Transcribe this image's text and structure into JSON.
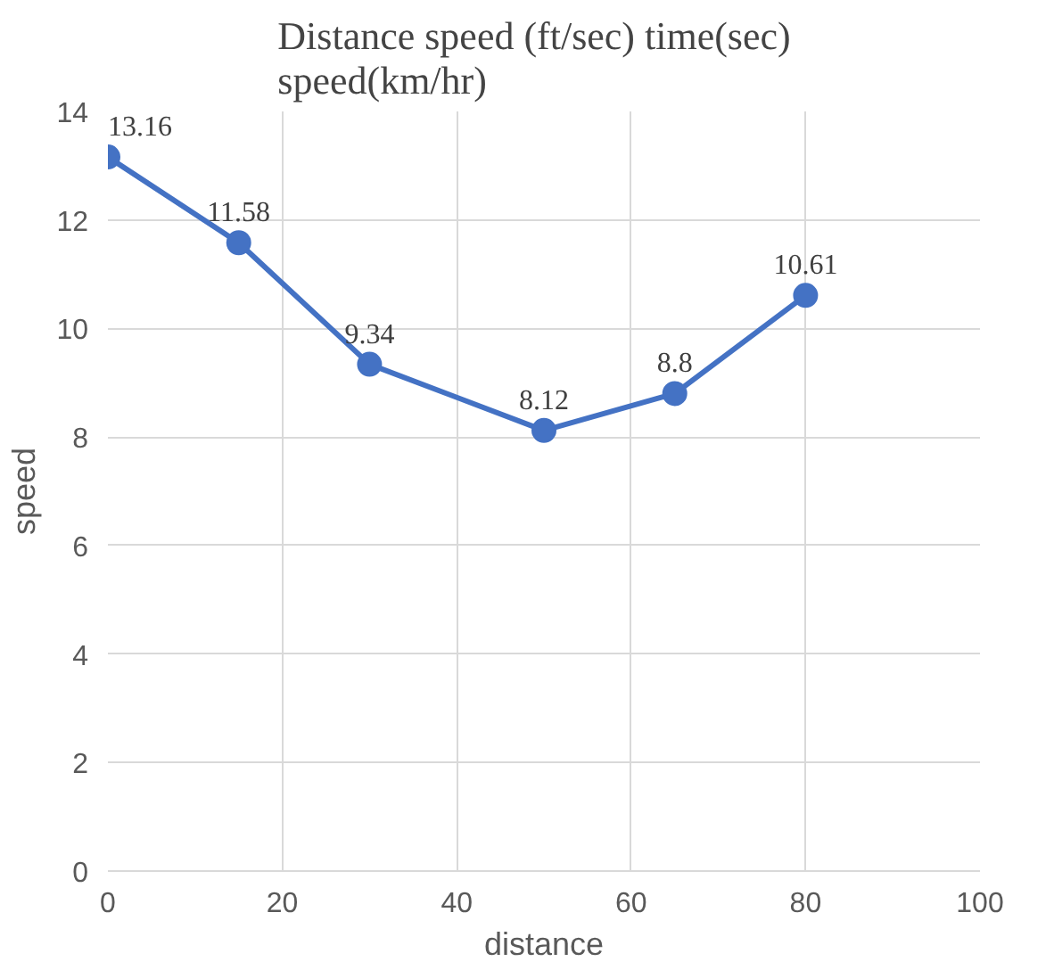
{
  "chart_data": {
    "type": "line",
    "title": "Distance  speed (ft/sec)  time(sec)\nspeed(km/hr)",
    "xlabel": "distance",
    "ylabel": "speed",
    "x": [
      0,
      15,
      30,
      50,
      65,
      80
    ],
    "series": [
      {
        "color": "#4472c4",
        "values": [
          13.16,
          11.58,
          9.34,
          8.12,
          8.8,
          10.61
        ]
      }
    ],
    "xlim": [
      0,
      100
    ],
    "xticks": [
      0,
      20,
      40,
      60,
      80,
      100
    ],
    "ylim": [
      0,
      14
    ],
    "yticks": [
      0,
      2,
      4,
      6,
      8,
      10,
      12,
      14
    ],
    "grid": true,
    "marker": "circle",
    "line_style": "solid",
    "data_labels": true
  }
}
